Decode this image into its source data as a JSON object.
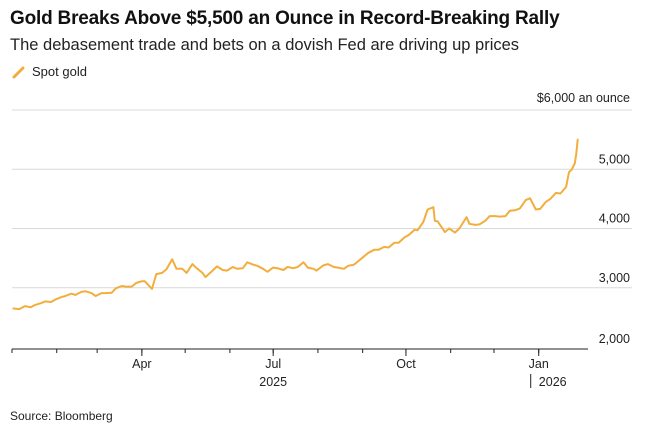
{
  "title": "Gold Breaks Above $5,500 an Ounce in Record-Breaking Rally",
  "subtitle": "The debasement trade and bets on a dovish Fed are driving up prices",
  "source": "Source: Bloomberg",
  "colors": {
    "series": "#f2ae3d",
    "grid": "#d9d9d9",
    "axis": "#222222"
  },
  "chart_data": {
    "type": "line",
    "title": "Gold Breaks Above $5,500 an Ounce in Record-Breaking Rally",
    "subtitle": "The debasement trade and bets on a dovish Fed are driving up prices",
    "xlabel": "",
    "ylabel": "",
    "y_unit_label": "$6,000 an ounce",
    "ylim": [
      2000,
      6000
    ],
    "xlim": [
      "2025-01-01",
      "2026-01-31"
    ],
    "y_ticks": [
      {
        "value": 2000,
        "label": "2,000"
      },
      {
        "value": 3000,
        "label": "3,000"
      },
      {
        "value": 4000,
        "label": "4,000"
      },
      {
        "value": 5000,
        "label": "5,000"
      },
      {
        "value": 6000,
        "label": "$6,000 an ounce"
      }
    ],
    "x_ticks": [
      {
        "date": "2025-04-01",
        "label": "Apr"
      },
      {
        "date": "2025-07-01",
        "label": "Jul"
      },
      {
        "date": "2025-10-01",
        "label": "Oct"
      },
      {
        "date": "2026-01-01",
        "label": "Jan"
      }
    ],
    "year_labels": [
      {
        "date": "2025-07-01",
        "label": "2025"
      },
      {
        "date": "2026-01-01",
        "label": "2026"
      }
    ],
    "grid": true,
    "legend": "top-left",
    "series": [
      {
        "name": "Spot gold",
        "color": "#f2ae3d",
        "points": [
          [
            "2025-01-02",
            2650
          ],
          [
            "2025-01-06",
            2640
          ],
          [
            "2025-01-10",
            2690
          ],
          [
            "2025-01-14",
            2670
          ],
          [
            "2025-01-17",
            2710
          ],
          [
            "2025-01-21",
            2740
          ],
          [
            "2025-01-24",
            2770
          ],
          [
            "2025-01-28",
            2760
          ],
          [
            "2025-01-31",
            2800
          ],
          [
            "2025-02-04",
            2840
          ],
          [
            "2025-02-07",
            2860
          ],
          [
            "2025-02-11",
            2900
          ],
          [
            "2025-02-14",
            2880
          ],
          [
            "2025-02-18",
            2930
          ],
          [
            "2025-02-21",
            2940
          ],
          [
            "2025-02-25",
            2910
          ],
          [
            "2025-02-28",
            2860
          ],
          [
            "2025-03-04",
            2910
          ],
          [
            "2025-03-07",
            2910
          ],
          [
            "2025-03-11",
            2915
          ],
          [
            "2025-03-14",
            2990
          ],
          [
            "2025-03-18",
            3030
          ],
          [
            "2025-03-21",
            3020
          ],
          [
            "2025-03-25",
            3020
          ],
          [
            "2025-03-28",
            3080
          ],
          [
            "2025-04-01",
            3110
          ],
          [
            "2025-04-03",
            3110
          ],
          [
            "2025-04-08",
            2980
          ],
          [
            "2025-04-11",
            3230
          ],
          [
            "2025-04-15",
            3250
          ],
          [
            "2025-04-18",
            3310
          ],
          [
            "2025-04-22",
            3480
          ],
          [
            "2025-04-25",
            3320
          ],
          [
            "2025-04-29",
            3320
          ],
          [
            "2025-05-02",
            3250
          ],
          [
            "2025-05-06",
            3400
          ],
          [
            "2025-05-09",
            3330
          ],
          [
            "2025-05-13",
            3250
          ],
          [
            "2025-05-15",
            3180
          ],
          [
            "2025-05-20",
            3290
          ],
          [
            "2025-05-23",
            3360
          ],
          [
            "2025-05-27",
            3300
          ],
          [
            "2025-05-30",
            3290
          ],
          [
            "2025-06-03",
            3350
          ],
          [
            "2025-06-06",
            3320
          ],
          [
            "2025-06-10",
            3330
          ],
          [
            "2025-06-13",
            3430
          ],
          [
            "2025-06-17",
            3390
          ],
          [
            "2025-06-20",
            3370
          ],
          [
            "2025-06-24",
            3320
          ],
          [
            "2025-06-27",
            3270
          ],
          [
            "2025-07-01",
            3340
          ],
          [
            "2025-07-04",
            3330
          ],
          [
            "2025-07-08",
            3300
          ],
          [
            "2025-07-11",
            3350
          ],
          [
            "2025-07-15",
            3330
          ],
          [
            "2025-07-18",
            3350
          ],
          [
            "2025-07-22",
            3430
          ],
          [
            "2025-07-25",
            3340
          ],
          [
            "2025-07-29",
            3320
          ],
          [
            "2025-07-31",
            3290
          ],
          [
            "2025-08-05",
            3380
          ],
          [
            "2025-08-08",
            3400
          ],
          [
            "2025-08-12",
            3350
          ],
          [
            "2025-08-15",
            3340
          ],
          [
            "2025-08-19",
            3320
          ],
          [
            "2025-08-22",
            3370
          ],
          [
            "2025-08-26",
            3390
          ],
          [
            "2025-08-29",
            3450
          ],
          [
            "2025-09-02",
            3530
          ],
          [
            "2025-09-05",
            3590
          ],
          [
            "2025-09-09",
            3640
          ],
          [
            "2025-09-12",
            3640
          ],
          [
            "2025-09-16",
            3690
          ],
          [
            "2025-09-19",
            3680
          ],
          [
            "2025-09-23",
            3760
          ],
          [
            "2025-09-26",
            3760
          ],
          [
            "2025-09-30",
            3850
          ],
          [
            "2025-10-03",
            3890
          ],
          [
            "2025-10-07",
            3980
          ],
          [
            "2025-10-09",
            3970
          ],
          [
            "2025-10-13",
            4110
          ],
          [
            "2025-10-16",
            4320
          ],
          [
            "2025-10-20",
            4360
          ],
          [
            "2025-10-21",
            4130
          ],
          [
            "2025-10-23",
            4120
          ],
          [
            "2025-10-28",
            3940
          ],
          [
            "2025-10-31",
            4000
          ],
          [
            "2025-11-04",
            3930
          ],
          [
            "2025-11-07",
            4000
          ],
          [
            "2025-11-12",
            4190
          ],
          [
            "2025-11-14",
            4080
          ],
          [
            "2025-11-18",
            4060
          ],
          [
            "2025-11-21",
            4070
          ],
          [
            "2025-11-25",
            4130
          ],
          [
            "2025-11-28",
            4210
          ],
          [
            "2025-12-02",
            4210
          ],
          [
            "2025-12-05",
            4200
          ],
          [
            "2025-12-09",
            4210
          ],
          [
            "2025-12-12",
            4300
          ],
          [
            "2025-12-16",
            4310
          ],
          [
            "2025-12-19",
            4340
          ],
          [
            "2025-12-23",
            4480
          ],
          [
            "2025-12-26",
            4510
          ],
          [
            "2025-12-30",
            4320
          ],
          [
            "2026-01-02",
            4330
          ],
          [
            "2026-01-06",
            4450
          ],
          [
            "2026-01-09",
            4500
          ],
          [
            "2026-01-13",
            4600
          ],
          [
            "2026-01-16",
            4590
          ],
          [
            "2026-01-20",
            4700
          ],
          [
            "2026-01-22",
            4950
          ],
          [
            "2026-01-24",
            5000
          ],
          [
            "2026-01-26",
            5100
          ],
          [
            "2026-01-27",
            5250
          ],
          [
            "2026-01-28",
            5500
          ]
        ]
      }
    ]
  }
}
